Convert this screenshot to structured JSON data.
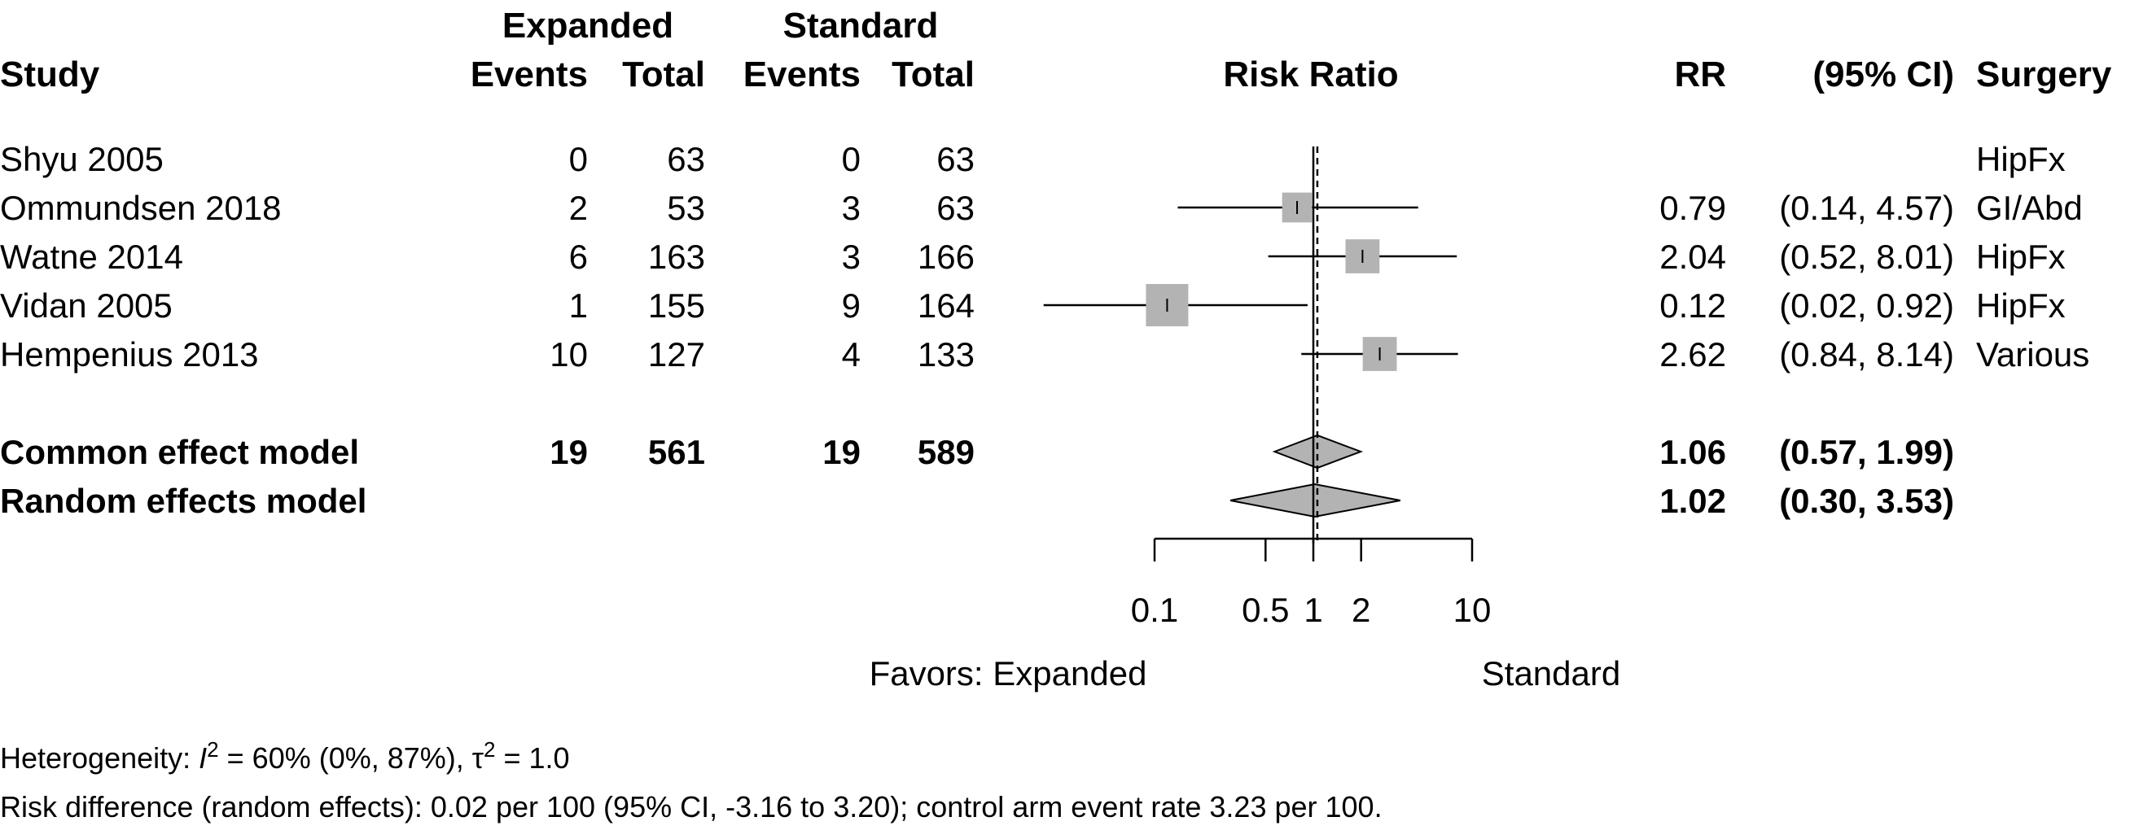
{
  "headers": {
    "study": "Study",
    "group1": "Expanded",
    "group2": "Standard",
    "events": "Events",
    "total": "Total",
    "plot": "Risk Ratio",
    "rr": "RR",
    "ci": "(95% CI)",
    "extra": "Surgery"
  },
  "chart_data": {
    "type": "forest",
    "measure": "Risk Ratio",
    "log_scale": true,
    "xlim": [
      0.1,
      10
    ],
    "ticks": [
      0.1,
      0.5,
      1,
      2,
      10
    ],
    "tick_labels": [
      "0.1",
      "0.5",
      "1",
      "2",
      "10"
    ],
    "reference_line": 1,
    "favors_left": "Favors: Expanded",
    "favors_right": "Standard",
    "studies": [
      {
        "name": "Shyu 2005",
        "e1": "0",
        "n1": "63",
        "e2": "0",
        "n2": "63",
        "rr": null,
        "lo": null,
        "hi": null,
        "rr_text": "",
        "ci_text": "",
        "surgery": "HipFx",
        "weight": 0
      },
      {
        "name": "Ommundsen 2018",
        "e1": "2",
        "n1": "53",
        "e2": "3",
        "n2": "63",
        "rr": 0.79,
        "lo": 0.14,
        "hi": 4.57,
        "rr_text": "0.79",
        "ci_text": "(0.14, 4.57)",
        "surgery": "GI/Abd",
        "weight": 0.55
      },
      {
        "name": "Watne 2014",
        "e1": "6",
        "n1": "163",
        "e2": "3",
        "n2": "166",
        "rr": 2.04,
        "lo": 0.52,
        "hi": 8.01,
        "rr_text": "2.04",
        "ci_text": "(0.52, 8.01)",
        "surgery": "HipFx",
        "weight": 0.7
      },
      {
        "name": "Vidan 2005",
        "e1": "1",
        "n1": "155",
        "e2": "9",
        "n2": "164",
        "rr": 0.12,
        "lo": 0.02,
        "hi": 0.92,
        "rr_text": "0.12",
        "ci_text": "(0.02, 0.92)",
        "surgery": "HipFx",
        "weight": 1.0
      },
      {
        "name": "Hempenius 2013",
        "e1": "10",
        "n1": "127",
        "e2": "4",
        "n2": "133",
        "rr": 2.62,
        "lo": 0.84,
        "hi": 8.14,
        "rr_text": "2.62",
        "ci_text": "(0.84, 8.14)",
        "surgery": "Various",
        "weight": 0.7
      }
    ],
    "pooled": [
      {
        "name": "Common effect model",
        "e1": "19",
        "n1": "561",
        "e2": "19",
        "n2": "589",
        "rr": 1.06,
        "lo": 0.57,
        "hi": 1.99,
        "rr_text": "1.06",
        "ci_text": "(0.57, 1.99)"
      },
      {
        "name": "Random effects model",
        "e1": "",
        "n1": "",
        "e2": "",
        "n2": "",
        "rr": 1.02,
        "lo": 0.3,
        "hi": 3.53,
        "rr_text": "1.02",
        "ci_text": "(0.30, 3.53)"
      }
    ],
    "heterogeneity": {
      "label": "Heterogeneity: ",
      "i2_symbol": "I",
      "i2_sup": "2",
      "i2_text": " = 60% (0%, 87%), ",
      "tau_symbol": "τ",
      "tau_sup": "2",
      "tau_text": " = 1.0"
    },
    "risk_difference": "Risk difference (random effects): 0.02 per 100 (95% CI, -3.16 to 3.20); control arm event rate 3.23 per 100."
  },
  "colors": {
    "square": "#b3b3b3",
    "diamond": "#b3b3b3",
    "line": "#000000"
  }
}
